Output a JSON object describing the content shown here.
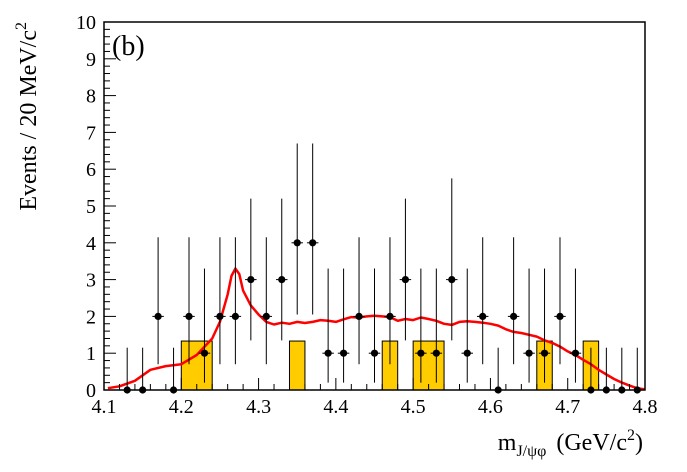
{
  "chart_data": {
    "type": "scatter",
    "panel_label": "(b)",
    "xlabel": "m",
    "xlabel_sub": "J/ψφ",
    "xlabel_unit_pre": "(GeV/c",
    "xlabel_unit_sup": "2",
    "xlabel_unit_post": ")",
    "ylabel": "Events / 20 MeV/c",
    "ylabel_sup": "2",
    "xlim": [
      4.1,
      4.8
    ],
    "ylim": [
      0,
      10
    ],
    "x_ticks": [
      "4.1",
      "4.2",
      "4.3",
      "4.4",
      "4.5",
      "4.6",
      "4.7",
      "4.8"
    ],
    "y_ticks": [
      "0",
      "1",
      "2",
      "3",
      "4",
      "5",
      "6",
      "7",
      "8",
      "9",
      "10"
    ],
    "bin_width": 0.02,
    "data_points": [
      {
        "x": 4.13,
        "y": 0,
        "lo": 0,
        "hi": 1.15
      },
      {
        "x": 4.15,
        "y": 0,
        "lo": 0,
        "hi": 1.15
      },
      {
        "x": 4.17,
        "y": 2,
        "lo": 0.7,
        "hi": 4.15
      },
      {
        "x": 4.19,
        "y": 0,
        "lo": 0,
        "hi": 1.15
      },
      {
        "x": 4.21,
        "y": 2,
        "lo": 0.7,
        "hi": 4.15
      },
      {
        "x": 4.23,
        "y": 1,
        "lo": 0.2,
        "hi": 3.3
      },
      {
        "x": 4.25,
        "y": 2,
        "lo": 0.7,
        "hi": 4.15
      },
      {
        "x": 4.27,
        "y": 2,
        "lo": 0.7,
        "hi": 4.15
      },
      {
        "x": 4.29,
        "y": 3,
        "lo": 1.35,
        "hi": 5.2
      },
      {
        "x": 4.31,
        "y": 2,
        "lo": 0.7,
        "hi": 4.15
      },
      {
        "x": 4.33,
        "y": 3,
        "lo": 1.35,
        "hi": 5.2
      },
      {
        "x": 4.35,
        "y": 4,
        "lo": 2.05,
        "hi": 6.7
      },
      {
        "x": 4.37,
        "y": 4,
        "lo": 2.05,
        "hi": 6.7
      },
      {
        "x": 4.39,
        "y": 1,
        "lo": 0.2,
        "hi": 3.3
      },
      {
        "x": 4.41,
        "y": 1,
        "lo": 0.2,
        "hi": 3.3
      },
      {
        "x": 4.43,
        "y": 2,
        "lo": 0.7,
        "hi": 4.15
      },
      {
        "x": 4.45,
        "y": 1,
        "lo": 0.2,
        "hi": 3.3
      },
      {
        "x": 4.47,
        "y": 2,
        "lo": 0.7,
        "hi": 4.15
      },
      {
        "x": 4.49,
        "y": 3,
        "lo": 1.35,
        "hi": 5.2
      },
      {
        "x": 4.51,
        "y": 1,
        "lo": 0.2,
        "hi": 3.3
      },
      {
        "x": 4.53,
        "y": 1,
        "lo": 0.2,
        "hi": 3.3
      },
      {
        "x": 4.55,
        "y": 3,
        "lo": 1.35,
        "hi": 5.75
      },
      {
        "x": 4.57,
        "y": 1,
        "lo": 0.2,
        "hi": 3.3
      },
      {
        "x": 4.59,
        "y": 2,
        "lo": 0.7,
        "hi": 4.15
      },
      {
        "x": 4.61,
        "y": 0,
        "lo": 0,
        "hi": 1.15
      },
      {
        "x": 4.63,
        "y": 2,
        "lo": 0.7,
        "hi": 4.15
      },
      {
        "x": 4.65,
        "y": 1,
        "lo": 0.2,
        "hi": 3.3
      },
      {
        "x": 4.67,
        "y": 1,
        "lo": 0.2,
        "hi": 3.3
      },
      {
        "x": 4.69,
        "y": 2,
        "lo": 0.7,
        "hi": 4.15
      },
      {
        "x": 4.71,
        "y": 1,
        "lo": 0.2,
        "hi": 3.3
      },
      {
        "x": 4.73,
        "y": 0,
        "lo": 0,
        "hi": 1.15
      },
      {
        "x": 4.75,
        "y": 0,
        "lo": 0,
        "hi": 1.15
      },
      {
        "x": 4.77,
        "y": 0,
        "lo": 0,
        "hi": 1.15
      },
      {
        "x": 4.79,
        "y": 0,
        "lo": 0,
        "hi": 1.15
      }
    ],
    "background_histogram": {
      "name": "sideband background",
      "color": "#ffcc00",
      "bins": [
        {
          "x0": 4.2,
          "x1": 4.24,
          "y": 1.33
        },
        {
          "x0": 4.34,
          "x1": 4.36,
          "y": 1.33
        },
        {
          "x0": 4.46,
          "x1": 4.48,
          "y": 1.33
        },
        {
          "x0": 4.5,
          "x1": 4.54,
          "y": 1.33
        },
        {
          "x0": 4.66,
          "x1": 4.68,
          "y": 1.33
        },
        {
          "x0": 4.72,
          "x1": 4.74,
          "y": 1.33
        }
      ]
    },
    "fit_curve": {
      "name": "fit",
      "color": "#ff0000",
      "x": [
        4.105,
        4.12,
        4.14,
        4.16,
        4.18,
        4.2,
        4.22,
        4.24,
        4.25,
        4.26,
        4.265,
        4.27,
        4.275,
        4.28,
        4.29,
        4.3,
        4.31,
        4.32,
        4.33,
        4.34,
        4.35,
        4.36,
        4.37,
        4.38,
        4.39,
        4.4,
        4.41,
        4.42,
        4.43,
        4.44,
        4.45,
        4.46,
        4.47,
        4.48,
        4.49,
        4.5,
        4.51,
        4.52,
        4.53,
        4.54,
        4.55,
        4.56,
        4.57,
        4.58,
        4.59,
        4.6,
        4.61,
        4.62,
        4.63,
        4.64,
        4.65,
        4.66,
        4.67,
        4.68,
        4.69,
        4.7,
        4.71,
        4.72,
        4.73,
        4.74,
        4.75,
        4.76,
        4.77,
        4.78,
        4.79,
        4.8
      ],
      "y": [
        0.05,
        0.1,
        0.25,
        0.55,
        0.65,
        0.7,
        0.95,
        1.4,
        1.85,
        2.6,
        3.1,
        3.3,
        3.15,
        2.7,
        2.3,
        2.05,
        1.85,
        1.78,
        1.83,
        1.8,
        1.85,
        1.82,
        1.85,
        1.9,
        1.88,
        1.85,
        1.92,
        1.98,
        1.97,
        2.0,
        2.02,
        2.0,
        1.98,
        1.88,
        1.93,
        1.9,
        1.97,
        1.93,
        1.88,
        1.8,
        1.77,
        1.85,
        1.87,
        1.85,
        1.83,
        1.8,
        1.75,
        1.65,
        1.58,
        1.55,
        1.5,
        1.45,
        1.35,
        1.28,
        1.18,
        1.05,
        0.95,
        0.82,
        0.7,
        0.55,
        0.42,
        0.3,
        0.2,
        0.12,
        0.05,
        0.02
      ]
    }
  }
}
